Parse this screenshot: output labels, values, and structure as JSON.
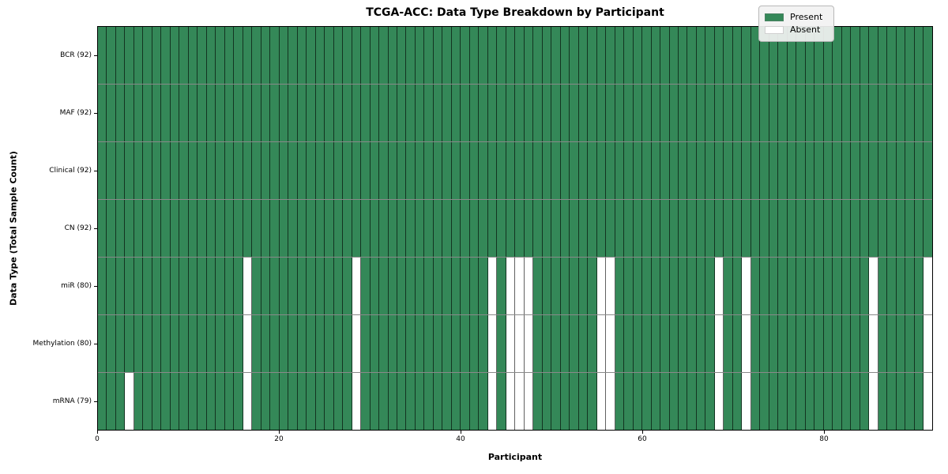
{
  "chart_data": {
    "type": "heatmap",
    "title": "TCGA-ACC: Data Type Breakdown by Participant",
    "xlabel": "Participant",
    "ylabel": "Data Type (Total Sample Count)",
    "n_participants": 92,
    "x_axis_range": [
      0,
      92
    ],
    "x_ticks": [
      0,
      20,
      40,
      60,
      80
    ],
    "grid": true,
    "legend_position": "upper right",
    "colors": {
      "present": "#348858",
      "absent": "#ffffff"
    },
    "legend": [
      {
        "label": "Present",
        "color": "#348858"
      },
      {
        "label": "Absent",
        "color": "#ffffff"
      }
    ],
    "rows": [
      {
        "label": "BCR (92)",
        "total": 92,
        "absent_participants": []
      },
      {
        "label": "MAF (92)",
        "total": 92,
        "absent_participants": []
      },
      {
        "label": "Clinical (92)",
        "total": 92,
        "absent_participants": []
      },
      {
        "label": "CN (92)",
        "total": 92,
        "absent_participants": []
      },
      {
        "label": "miR (80)",
        "total": 80,
        "absent_participants": [
          16,
          28,
          43,
          45,
          46,
          47,
          55,
          56,
          68,
          71,
          85,
          91
        ]
      },
      {
        "label": "Methylation (80)",
        "total": 80,
        "absent_participants": [
          16,
          28,
          43,
          45,
          46,
          47,
          55,
          56,
          68,
          71,
          85,
          91
        ]
      },
      {
        "label": "mRNA (79)",
        "total": 79,
        "absent_participants": [
          3,
          16,
          28,
          43,
          45,
          46,
          47,
          55,
          56,
          68,
          71,
          85,
          91
        ]
      }
    ]
  }
}
